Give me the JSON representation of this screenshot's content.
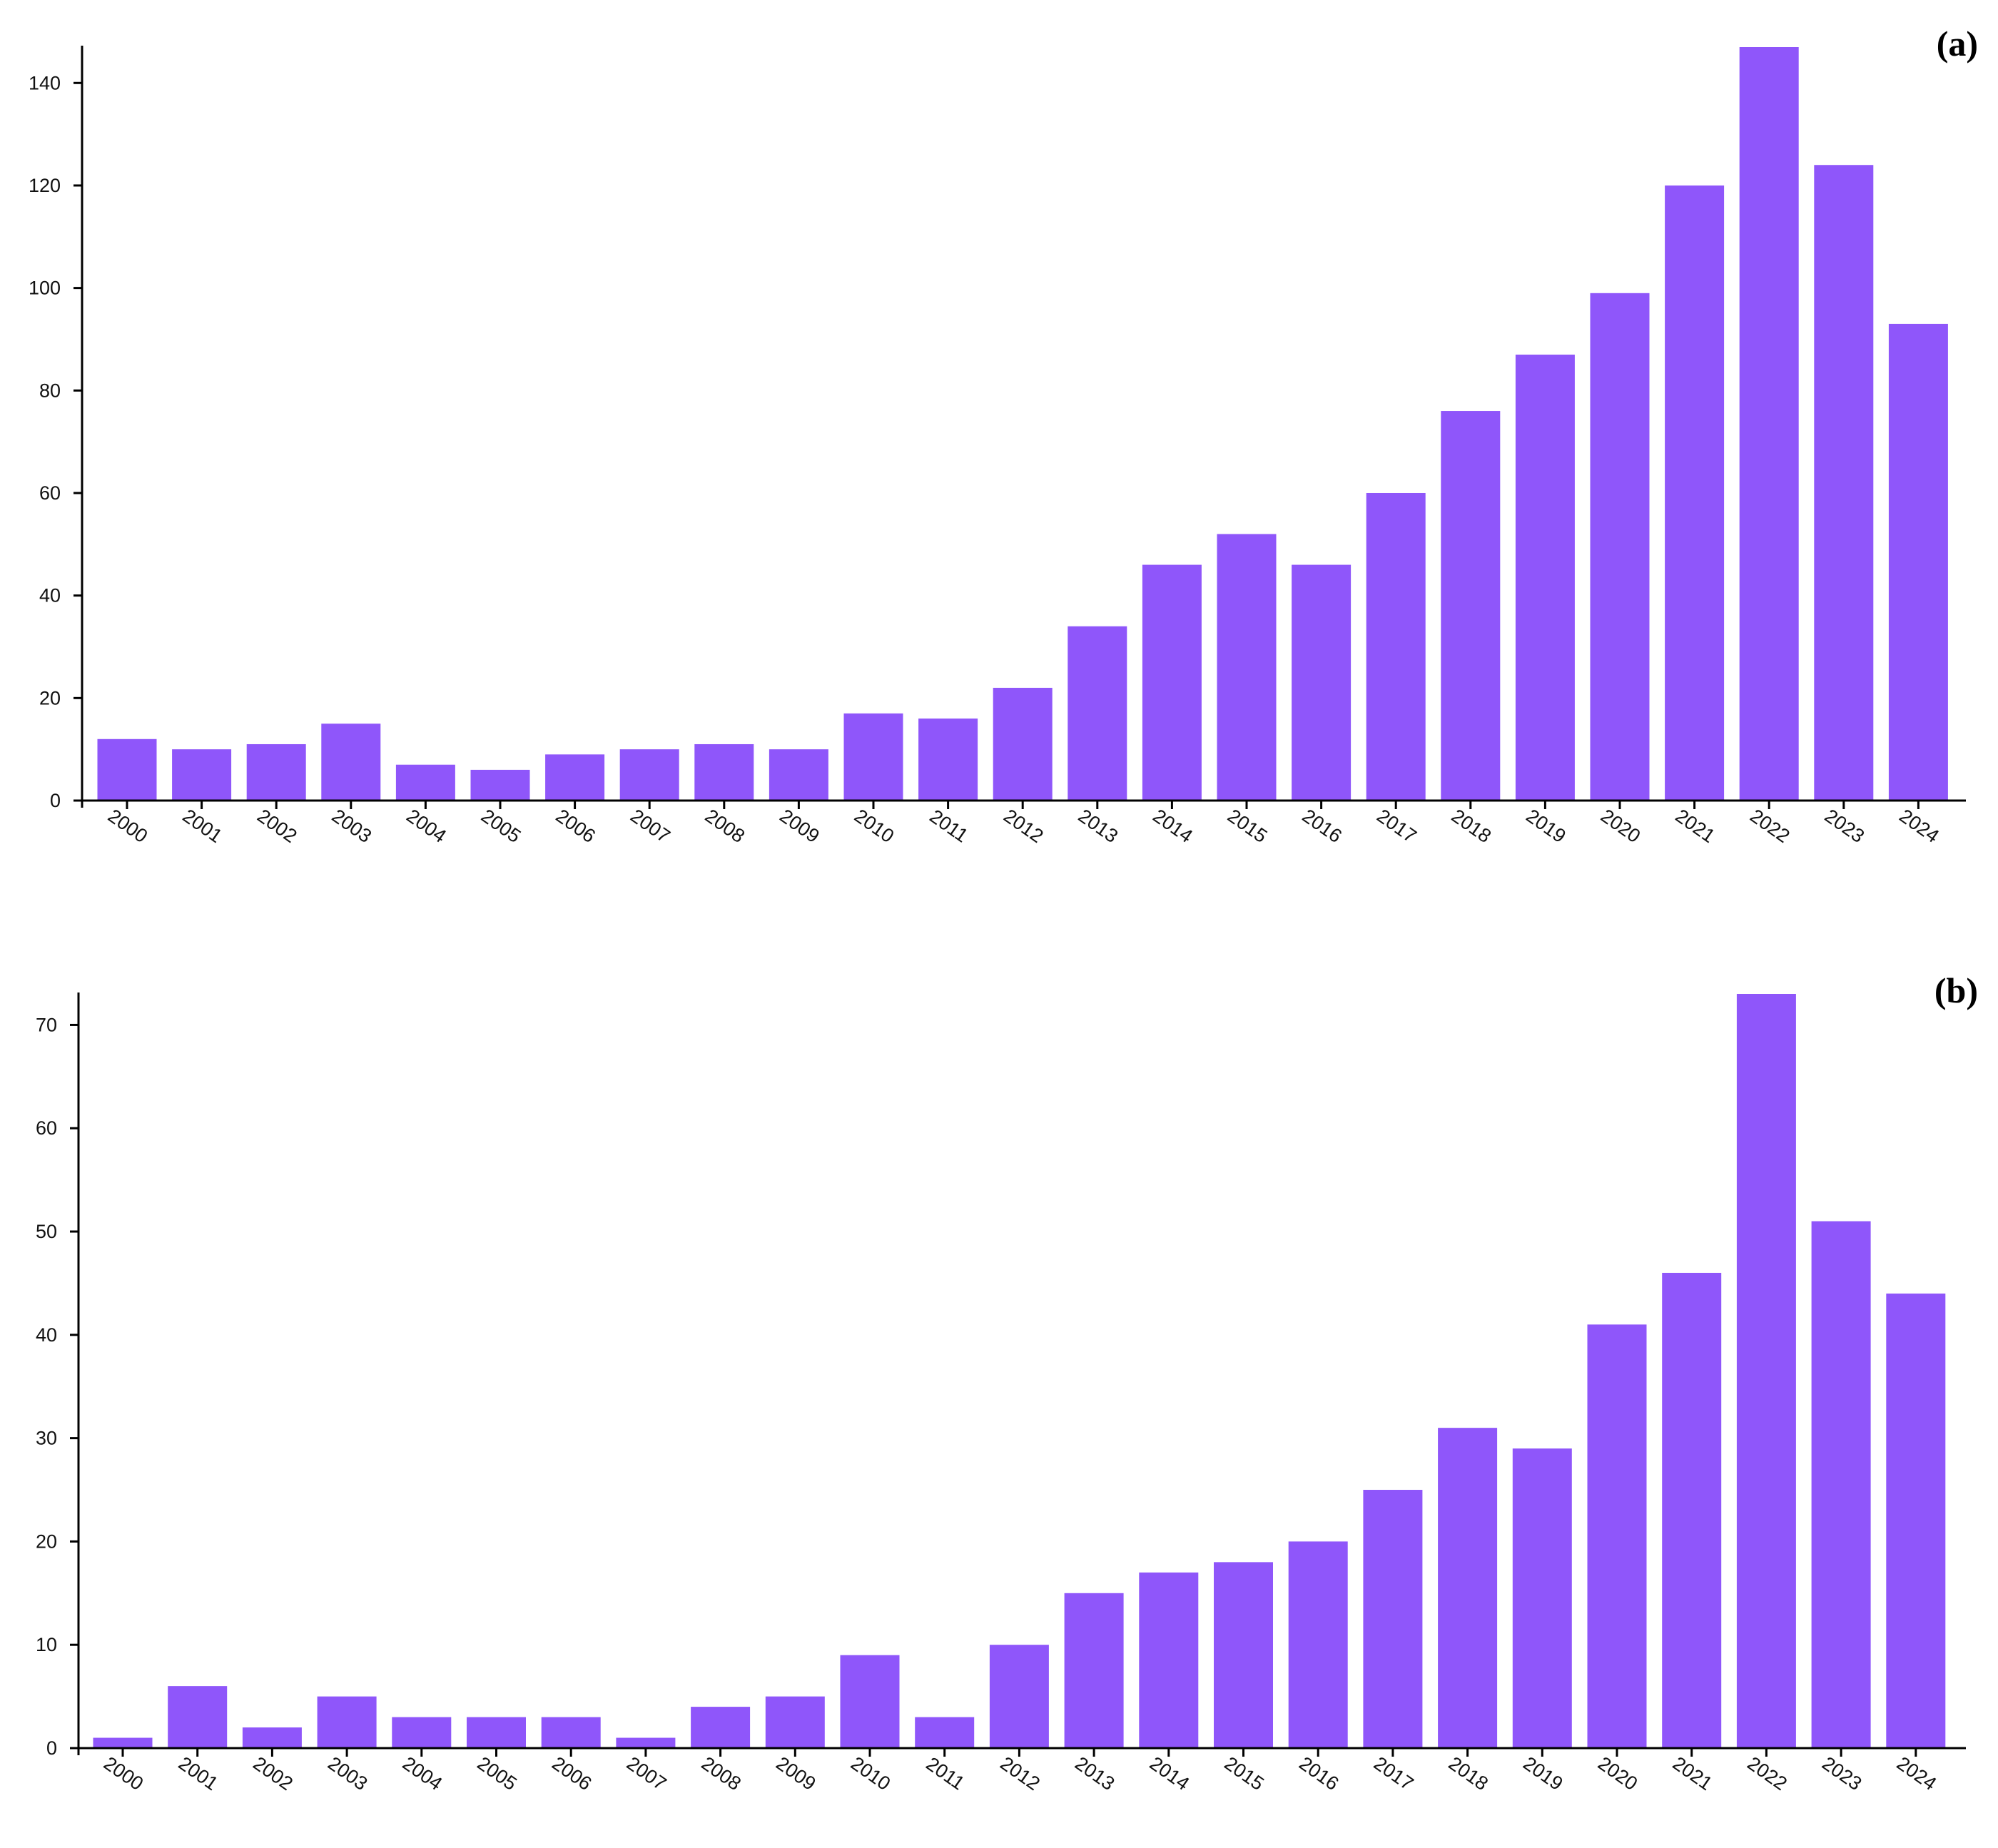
{
  "chart_data": [
    {
      "type": "bar",
      "panel_label": "(a)",
      "categories": [
        "2000",
        "2001",
        "2002",
        "2003",
        "2004",
        "2005",
        "2006",
        "2007",
        "2008",
        "2009",
        "2010",
        "2011",
        "2012",
        "2013",
        "2014",
        "2015",
        "2016",
        "2017",
        "2018",
        "2019",
        "2020",
        "2021",
        "2022",
        "2023",
        "2024"
      ],
      "values": [
        12,
        10,
        11,
        15,
        7,
        6,
        9,
        10,
        11,
        10,
        17,
        16,
        22,
        34,
        46,
        52,
        46,
        60,
        76,
        87,
        99,
        120,
        147,
        124,
        93
      ],
      "title": "",
      "xlabel": "",
      "ylabel": "",
      "ylim": [
        0,
        147
      ],
      "yticks": [
        0,
        20,
        40,
        60,
        80,
        100,
        120,
        140
      ],
      "grid": false,
      "bar_color": "#8f56fa"
    },
    {
      "type": "bar",
      "panel_label": "(b)",
      "categories": [
        "2000",
        "2001",
        "2002",
        "2003",
        "2004",
        "2005",
        "2006",
        "2007",
        "2008",
        "2009",
        "2010",
        "2011",
        "2012",
        "2013",
        "2014",
        "2015",
        "2016",
        "2017",
        "2018",
        "2019",
        "2020",
        "2021",
        "2022",
        "2023",
        "2024"
      ],
      "values": [
        1,
        6,
        2,
        5,
        3,
        3,
        3,
        1,
        4,
        5,
        9,
        3,
        10,
        15,
        17,
        18,
        20,
        25,
        31,
        29,
        41,
        46,
        73,
        51,
        44
      ],
      "title": "",
      "xlabel": "",
      "ylabel": "",
      "ylim": [
        0,
        73
      ],
      "yticks": [
        0,
        10,
        20,
        30,
        40,
        50,
        60,
        70
      ],
      "grid": false,
      "bar_color": "#8f56fa"
    }
  ]
}
